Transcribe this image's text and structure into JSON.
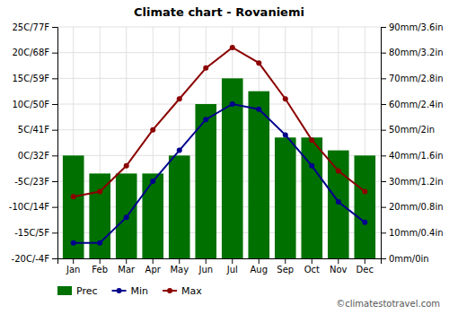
{
  "chart_data": {
    "type": "bar",
    "title": "Climate chart - Rovaniemi",
    "categories": [
      "Jan",
      "Feb",
      "Mar",
      "Apr",
      "May",
      "Jun",
      "Jul",
      "Aug",
      "Sep",
      "Oct",
      "Nov",
      "Dec"
    ],
    "series": [
      {
        "name": "Prec",
        "type": "bar",
        "axis": "y2",
        "color": "#007000",
        "values": [
          40,
          33,
          33,
          33,
          40,
          60,
          70,
          65,
          47,
          47,
          42,
          40
        ]
      },
      {
        "name": "Min",
        "type": "line",
        "marker": "circle",
        "color": "#00008B",
        "values": [
          -17,
          -17,
          -12,
          -5,
          1,
          7,
          10,
          9,
          4,
          -2,
          -9,
          -13
        ]
      },
      {
        "name": "Max",
        "type": "line",
        "marker": "circle",
        "color": "#8B0000",
        "values": [
          -8,
          -7,
          -2,
          5,
          11,
          17,
          21,
          18,
          11,
          3,
          -3,
          -7
        ]
      }
    ],
    "ylim": [
      -20,
      25
    ],
    "yticks": [
      {
        "value": -20,
        "label": "-20C/-4F"
      },
      {
        "value": -15,
        "label": "-15C/5F"
      },
      {
        "value": -10,
        "label": "-10C/14F"
      },
      {
        "value": -5,
        "label": "-5C/23F"
      },
      {
        "value": 0,
        "label": "0C/32F"
      },
      {
        "value": 5,
        "label": "5C/41F"
      },
      {
        "value": 10,
        "label": "10C/50F"
      },
      {
        "value": 15,
        "label": "15C/59F"
      },
      {
        "value": 20,
        "label": "20C/68F"
      },
      {
        "value": 25,
        "label": "25C/77F"
      }
    ],
    "y2lim": [
      0,
      90
    ],
    "y2ticks": [
      {
        "value": 0,
        "label": "0mm/0in"
      },
      {
        "value": 10,
        "label": "10mm/0.4in"
      },
      {
        "value": 20,
        "label": "20mm/0.8in"
      },
      {
        "value": 30,
        "label": "30mm/1.2in"
      },
      {
        "value": 40,
        "label": "40mm/1.6in"
      },
      {
        "value": 50,
        "label": "50mm/2in"
      },
      {
        "value": 60,
        "label": "60mm/2.4in"
      },
      {
        "value": 70,
        "label": "70mm/2.8in"
      },
      {
        "value": 80,
        "label": "80mm/3.2in"
      },
      {
        "value": 90,
        "label": "90mm/3.6in"
      }
    ],
    "grid": true,
    "legend": "bottom",
    "annotations": [
      "©climatestotravel.com"
    ]
  }
}
